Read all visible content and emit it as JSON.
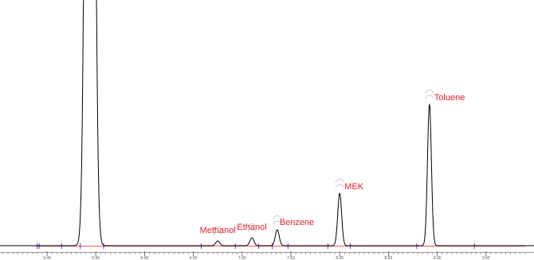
{
  "chart_data": {
    "type": "line",
    "title": "",
    "xlabel": "",
    "ylabel": "",
    "xlim": [
      4.55,
      9.95
    ],
    "grid": false,
    "legend": "none",
    "colors": {
      "trace": "#000000",
      "labels": "#e8202a",
      "baseline": "#e8202a",
      "markers": "#6a2ccf",
      "peak_hooks": "#888888"
    },
    "x_ticks": [
      "5.00",
      "5.50",
      "6.00",
      "6.50",
      "7.00",
      "7.50",
      "8.00",
      "8.50",
      "9.00",
      "9.50"
    ],
    "series": [
      {
        "peaks": [
          {
            "x": 5.44,
            "height": 2000,
            "width": 0.035,
            "label": ""
          },
          {
            "x": 6.75,
            "height": 6,
            "width": 0.02,
            "label": "Methanol"
          },
          {
            "x": 7.1,
            "height": 10,
            "width": 0.02,
            "label": "Ethanol"
          },
          {
            "x": 7.36,
            "height": 20,
            "width": 0.02,
            "label": "Benzene"
          },
          {
            "x": 8.0,
            "height": 66,
            "width": 0.02,
            "label": "MEK"
          },
          {
            "x": 8.92,
            "height": 178,
            "width": 0.02,
            "label": "Toluene"
          }
        ]
      }
    ],
    "integration_markers": [
      4.9,
      4.92,
      5.15,
      5.34,
      5.58,
      6.58,
      6.93,
      7.17,
      7.31,
      7.47,
      7.88,
      8.11,
      8.79,
      9.38
    ]
  }
}
